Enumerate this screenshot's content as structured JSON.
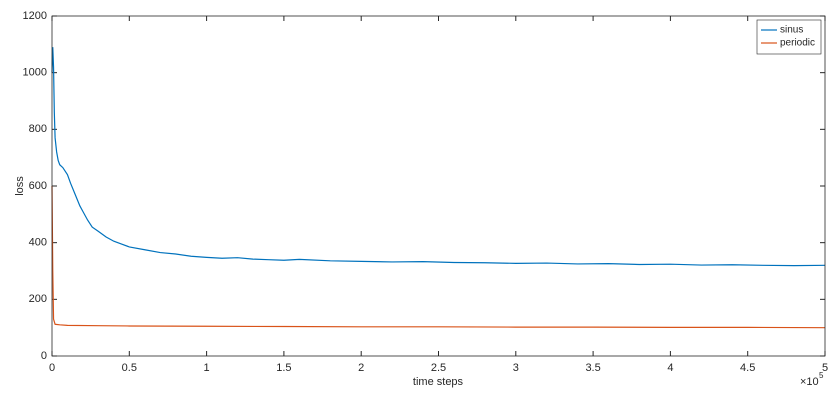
{
  "chart_data": {
    "type": "line",
    "xlabel": "time steps",
    "ylabel": "loss",
    "x_multiplier": {
      "base": "×10",
      "exponent": "5"
    },
    "xlim": [
      0,
      5
    ],
    "xticks": [
      0,
      0.5,
      1,
      1.5,
      2,
      2.5,
      3,
      3.5,
      4,
      4.5,
      5
    ],
    "ylim": [
      0,
      1200
    ],
    "yticks": [
      0,
      200,
      400,
      600,
      800,
      1000,
      1200
    ],
    "grid": false,
    "legend": "top-right",
    "series": [
      {
        "name": "sinus",
        "color": "#0072bd",
        "x": [
          0,
          0.005,
          0.01,
          0.015,
          0.02,
          0.03,
          0.04,
          0.05,
          0.07,
          0.1,
          0.12,
          0.15,
          0.18,
          0.2,
          0.23,
          0.26,
          0.3,
          0.35,
          0.4,
          0.45,
          0.5,
          0.6,
          0.7,
          0.8,
          0.9,
          1.0,
          1.1,
          1.2,
          1.3,
          1.4,
          1.5,
          1.6,
          1.8,
          2.0,
          2.2,
          2.4,
          2.6,
          2.8,
          3.0,
          3.2,
          3.4,
          3.6,
          3.8,
          4.0,
          4.2,
          4.4,
          4.6,
          4.8,
          5.0
        ],
        "values": [
          1000,
          1090,
          1020,
          860,
          770,
          720,
          690,
          675,
          665,
          640,
          610,
          570,
          530,
          510,
          480,
          455,
          440,
          420,
          405,
          395,
          385,
          375,
          365,
          360,
          352,
          348,
          345,
          347,
          342,
          340,
          338,
          341,
          336,
          334,
          332,
          333,
          330,
          329,
          327,
          328,
          325,
          326,
          323,
          324,
          321,
          322,
          320,
          319,
          320
        ]
      },
      {
        "name": "periodic",
        "color": "#d95319",
        "x": [
          0,
          0.005,
          0.01,
          0.02,
          0.05,
          0.1,
          0.3,
          0.5,
          1,
          1.5,
          2,
          2.5,
          3,
          3.5,
          4,
          4.5,
          5
        ],
        "values": [
          600,
          300,
          130,
          112,
          110,
          108,
          107,
          106,
          105,
          104,
          103,
          103,
          102,
          102,
          101,
          101,
          100
        ]
      }
    ]
  }
}
